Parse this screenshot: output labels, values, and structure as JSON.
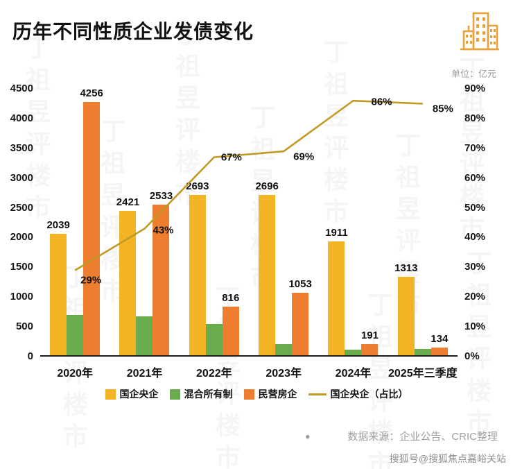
{
  "header": {
    "title": "历年不同性质企业发债变化"
  },
  "unit_label": "单位：亿元",
  "chart_data": {
    "type": "bar+line",
    "title": "历年不同性质企业发债变化",
    "categories": [
      "2020年",
      "2021年",
      "2022年",
      "2023年",
      "2024年",
      "2025年三季度"
    ],
    "series": [
      {
        "key": "soe",
        "name": "国企央企",
        "type": "bar",
        "color": "#F2B325",
        "values": [
          2039,
          2421,
          2693,
          2696,
          1911,
          1313
        ],
        "show_labels": true
      },
      {
        "key": "mixed",
        "name": "混合所有制",
        "type": "bar",
        "color": "#69AC4E",
        "values": [
          680,
          650,
          530,
          190,
          90,
          110
        ],
        "show_labels": false
      },
      {
        "key": "private",
        "name": "民营房企",
        "type": "bar",
        "color": "#ED7D2F",
        "values": [
          4256,
          2533,
          816,
          1053,
          191,
          134
        ],
        "show_labels": true
      },
      {
        "key": "soe-ratio",
        "name": "国企央企（占比）",
        "type": "line",
        "color": "#C19A26",
        "axis": "right",
        "values": [
          29,
          43,
          67,
          69,
          86,
          85
        ]
      }
    ],
    "left_axis": {
      "min": 0,
      "max": 4500,
      "step": 500
    },
    "right_axis": {
      "min": 0,
      "max": 90,
      "step": 10,
      "suffix": "%"
    },
    "grid": false,
    "legend_position": "bottom"
  },
  "footer": {
    "bullet": "●",
    "source": "数据来源：企业公告、CRIC整理"
  },
  "watermark": {
    "bg_text": "丁祖昱评楼市",
    "sohu": "搜狐号@搜狐焦点嘉峪关站"
  },
  "icons": {
    "logo": "building-icon"
  }
}
